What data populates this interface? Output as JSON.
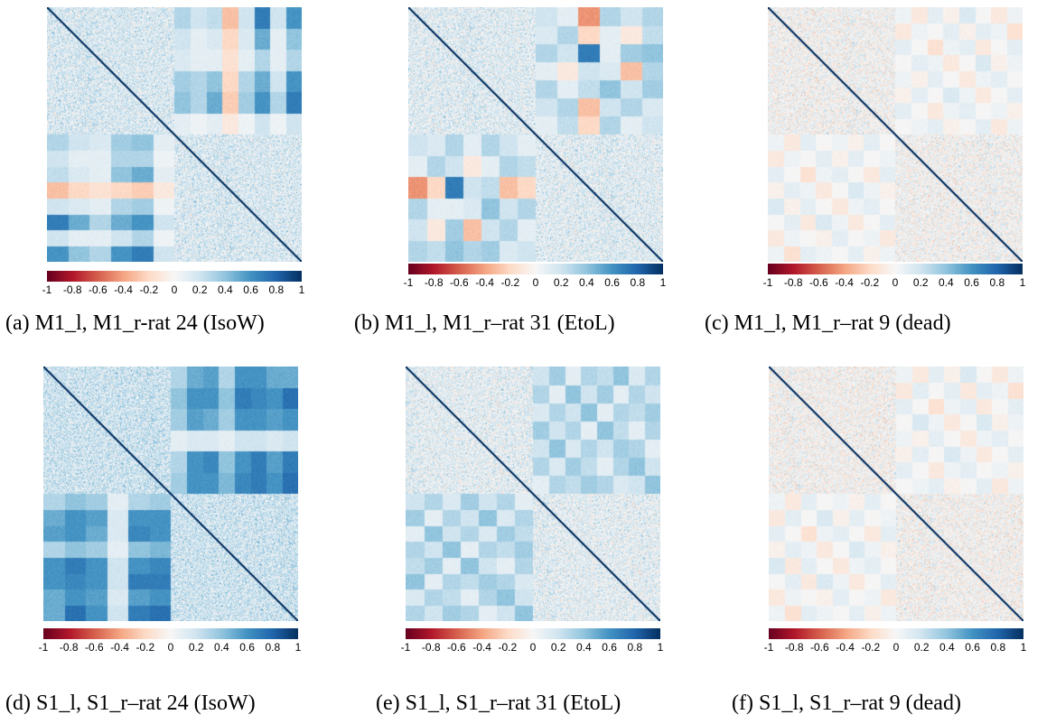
{
  "colorbar": {
    "ticks": [
      "-1",
      "-0.8",
      "-0.6",
      "-0.4",
      "-0.2",
      "0",
      "0.2",
      "0.4",
      "0.6",
      "0.8",
      "1"
    ],
    "colors": [
      "#67001f",
      "#b2182b",
      "#d6604d",
      "#f4a582",
      "#fddbc7",
      "#f7f7f7",
      "#d1e5f0",
      "#92c5de",
      "#4393c3",
      "#2166ac",
      "#053061"
    ]
  },
  "panels": [
    {
      "caption": "(a) M1_l, M1_r-rat 24 (IsoW)"
    },
    {
      "caption": "(b) M1_l, M1_r–rat 31 (EtoL)"
    },
    {
      "caption": "(c) M1_l, M1_r–rat 9 (dead)"
    },
    {
      "caption": "(d) S1_l, S1_r–rat 24 (IsoW)"
    },
    {
      "caption": "(e) S1_l, S1_r–rat 31 (EtoL)"
    },
    {
      "caption": "(f) S1_l, S1_r–rat 9 (dead)"
    }
  ],
  "chart_data": [
    {
      "type": "heatmap",
      "caption": "(a) M1_l, M1_r-rat 24 (IsoW)",
      "value_range": [
        -1,
        1
      ],
      "colormap": "RdBu",
      "diagonal_value": 1,
      "cross_block_pattern": [
        [
          0.3,
          0.2,
          0.25,
          -0.3,
          0.2,
          0.7,
          0.2,
          0.6
        ],
        [
          0.2,
          0.1,
          0.15,
          -0.2,
          0.15,
          0.5,
          0.1,
          0.4
        ],
        [
          0.15,
          0.1,
          0.1,
          -0.15,
          0.1,
          0.3,
          0.1,
          0.3
        ],
        [
          0.35,
          0.3,
          0.4,
          -0.2,
          0.3,
          0.5,
          0.2,
          0.6
        ],
        [
          0.4,
          0.3,
          0.5,
          -0.25,
          0.35,
          0.6,
          0.3,
          0.7
        ],
        [
          0.1,
          0.05,
          0.1,
          -0.1,
          0.05,
          0.2,
          0.05,
          0.2
        ]
      ],
      "diag_block_mean": 0.15
    },
    {
      "type": "heatmap",
      "caption": "(b) M1_l, M1_r–rat 31 (EtoL)",
      "value_range": [
        -1,
        1
      ],
      "colormap": "RdBu",
      "diagonal_value": 1,
      "cross_block_pattern": [
        [
          0.2,
          0.1,
          -0.45,
          0.3,
          0.2,
          0.3
        ],
        [
          0.15,
          0.3,
          -0.2,
          0.1,
          -0.1,
          0.25
        ],
        [
          0.3,
          0.2,
          0.7,
          0.1,
          0.35,
          0.4
        ],
        [
          0.1,
          -0.1,
          0.2,
          0.15,
          -0.3,
          0.3
        ],
        [
          0.3,
          0.1,
          0.25,
          0.4,
          0.2,
          0.35
        ],
        [
          0.2,
          0.3,
          -0.3,
          0.2,
          0.3,
          0.15
        ],
        [
          0.1,
          0.25,
          -0.2,
          0.3,
          0.1,
          0.2
        ]
      ],
      "diag_block_mean": 0.12
    },
    {
      "type": "heatmap",
      "caption": "(c) M1_l, M1_r–rat 9 (dead)",
      "value_range": [
        -1,
        1
      ],
      "colormap": "RdBu",
      "diagonal_value": 1,
      "cross_block_pattern": [
        [
          0.05,
          -0.1,
          0.1,
          -0.05,
          0.15,
          0.0,
          -0.1,
          0.05
        ],
        [
          -0.1,
          0.05,
          0.0,
          0.1,
          -0.05,
          0.1,
          0.05,
          -0.15
        ],
        [
          0.1,
          0.0,
          -0.15,
          0.05,
          0.1,
          -0.1,
          0.0,
          0.1
        ],
        [
          0.0,
          0.1,
          0.05,
          -0.1,
          0.0,
          0.15,
          -0.05,
          0.05
        ],
        [
          0.05,
          -0.05,
          0.1,
          0.0,
          -0.1,
          0.05,
          0.1,
          0.0
        ],
        [
          -0.05,
          0.1,
          0.0,
          0.15,
          0.05,
          -0.1,
          0.0,
          0.1
        ],
        [
          0.1,
          0.0,
          -0.1,
          0.05,
          0.1,
          0.0,
          0.05,
          -0.05
        ],
        [
          0.0,
          0.05,
          0.1,
          -0.05,
          0.0,
          0.1,
          -0.1,
          0.05
        ]
      ],
      "diag_block_mean": 0.02
    },
    {
      "type": "heatmap",
      "caption": "(d) S1_l, S1_r–rat 24 (IsoW)",
      "value_range": [
        -1,
        1
      ],
      "colormap": "RdBu",
      "diagonal_value": 1,
      "cross_block_pattern": [
        [
          0.3,
          0.5,
          0.55,
          0.3,
          0.6,
          0.6,
          0.5,
          0.5
        ],
        [
          0.4,
          0.6,
          0.6,
          0.4,
          0.7,
          0.65,
          0.6,
          0.75
        ],
        [
          0.35,
          0.55,
          0.5,
          0.35,
          0.6,
          0.6,
          0.55,
          0.6
        ],
        [
          0.1,
          0.15,
          0.15,
          0.1,
          0.2,
          0.2,
          0.15,
          0.2
        ],
        [
          0.3,
          0.6,
          0.65,
          0.4,
          0.6,
          0.7,
          0.55,
          0.7
        ],
        [
          0.35,
          0.6,
          0.6,
          0.45,
          0.65,
          0.7,
          0.6,
          0.75
        ]
      ],
      "diag_block_mean": 0.2
    },
    {
      "type": "heatmap",
      "caption": "(e) S1_l, S1_r–rat 31 (EtoL)",
      "value_range": [
        -1,
        1
      ],
      "colormap": "RdBu",
      "diagonal_value": 1,
      "cross_block_pattern": [
        [
          0.2,
          0.35,
          0.1,
          0.3,
          0.25,
          0.4,
          0.15,
          0.3
        ],
        [
          0.3,
          0.1,
          0.4,
          0.2,
          0.35,
          0.1,
          0.3,
          0.2
        ],
        [
          0.15,
          0.3,
          0.2,
          0.4,
          0.1,
          0.3,
          0.25,
          0.35
        ],
        [
          0.35,
          0.2,
          0.3,
          0.1,
          0.4,
          0.25,
          0.1,
          0.3
        ],
        [
          0.2,
          0.4,
          0.15,
          0.3,
          0.2,
          0.35,
          0.3,
          0.1
        ],
        [
          0.3,
          0.15,
          0.35,
          0.25,
          0.1,
          0.3,
          0.4,
          0.2
        ],
        [
          0.1,
          0.3,
          0.25,
          0.35,
          0.3,
          0.15,
          0.2,
          0.4
        ]
      ],
      "diag_block_mean": 0.1
    },
    {
      "type": "heatmap",
      "caption": "(f) S1_l, S1_r–rat 9 (dead)",
      "value_range": [
        -1,
        1
      ],
      "colormap": "RdBu",
      "diagonal_value": 1,
      "cross_block_pattern": [
        [
          0.05,
          -0.1,
          0.1,
          -0.05,
          0.15,
          0.0,
          -0.1,
          0.05
        ],
        [
          -0.1,
          0.1,
          0.0,
          0.1,
          -0.1,
          0.1,
          0.05,
          -0.15
        ],
        [
          0.1,
          0.0,
          -0.15,
          0.05,
          0.1,
          -0.1,
          0.0,
          0.1
        ],
        [
          0.0,
          0.15,
          0.05,
          -0.1,
          0.0,
          0.15,
          -0.05,
          0.05
        ],
        [
          0.05,
          -0.05,
          0.1,
          0.0,
          -0.1,
          0.05,
          0.1,
          0.0
        ],
        [
          -0.05,
          0.1,
          0.0,
          0.15,
          0.05,
          -0.1,
          0.0,
          0.1
        ],
        [
          0.1,
          0.0,
          -0.1,
          0.05,
          0.1,
          0.0,
          0.05,
          -0.05
        ],
        [
          0.0,
          0.05,
          0.1,
          -0.05,
          0.0,
          0.1,
          -0.1,
          0.05
        ]
      ],
      "diag_block_mean": 0.01
    }
  ]
}
